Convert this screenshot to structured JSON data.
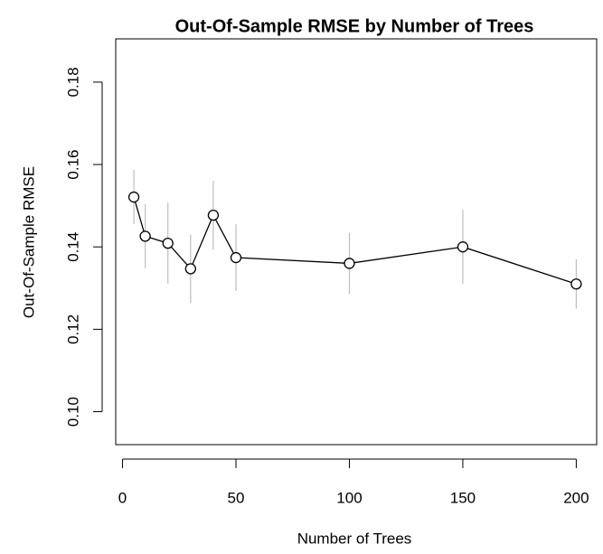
{
  "chart_data": {
    "type": "line",
    "title": "Out-Of-Sample RMSE by Number of Trees",
    "x_label": "Number of Trees",
    "y_label": "Out-Of-Sample RMSE",
    "x": [
      5,
      10,
      20,
      30,
      40,
      50,
      100,
      150,
      200
    ],
    "series": [
      {
        "name": "RMSE",
        "color": "#000000",
        "values": [
          0.1521,
          0.1426,
          0.1409,
          0.1347,
          0.1477,
          0.1374,
          0.136,
          0.14,
          0.131
        ],
        "errors": [
          0.0066,
          0.0078,
          0.0098,
          0.0083,
          0.0084,
          0.0081,
          0.0074,
          0.009,
          0.006
        ],
        "error_color": "#bebebe"
      }
    ],
    "xlim": [
      -3,
      209
    ],
    "ylim": [
      0.092,
      0.1905
    ],
    "xticks": [
      0,
      50,
      100,
      150,
      200
    ],
    "yticks": [
      {
        "value": 0.1,
        "label": "0.10"
      },
      {
        "value": 0.12,
        "label": "0.12"
      },
      {
        "value": 0.14,
        "label": "0.14"
      },
      {
        "value": 0.16,
        "label": "0.16"
      },
      {
        "value": 0.18,
        "label": "0.18"
      }
    ]
  }
}
